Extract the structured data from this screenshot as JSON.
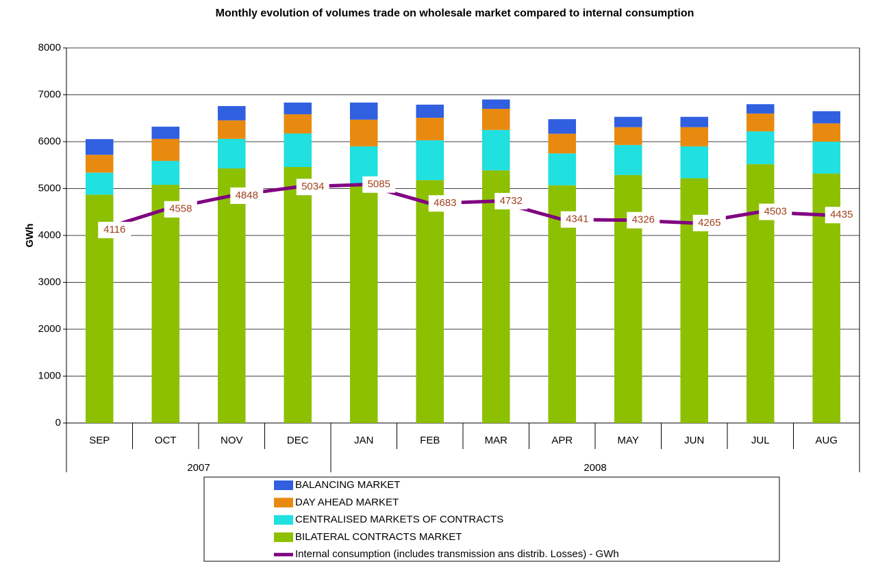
{
  "chart_data": {
    "type": "stacked_bar_line",
    "title": "Monthly evolution of volumes trade on wholesale market compared to internal consumption",
    "y_label": "GWh",
    "categories": [
      "SEP",
      "OCT",
      "NOV",
      "DEC",
      "JAN",
      "FEB",
      "MAR",
      "APR",
      "MAY",
      "JUN",
      "JUL",
      "AUG"
    ],
    "groups": [
      {
        "label": "2007",
        "count": 4
      },
      {
        "label": "2008",
        "count": 8
      }
    ],
    "ylim": [
      0,
      8000
    ],
    "yticks": [
      0,
      1000,
      2000,
      3000,
      4000,
      5000,
      6000,
      7000,
      8000
    ],
    "grid": true,
    "series": [
      {
        "name": "BILATERAL CONTRACTS MARKET",
        "color": "#8dc000",
        "values": [
          4870,
          5080,
          5430,
          5460,
          5060,
          5180,
          5390,
          5070,
          5290,
          5220,
          5520,
          5320
        ]
      },
      {
        "name": "CENTRALISED MARKETS OF CONTRACTS",
        "color": "#20e0e0",
        "values": [
          470,
          510,
          630,
          715,
          840,
          850,
          860,
          680,
          640,
          680,
          700,
          680
        ]
      },
      {
        "name": "DAY AHEAD MARKET",
        "color": "#e88a10",
        "values": [
          380,
          470,
          395,
          410,
          570,
          480,
          450,
          420,
          380,
          410,
          380,
          390
        ]
      },
      {
        "name": "BALANCING MARKET",
        "color": "#3060e0",
        "values": [
          335,
          260,
          305,
          250,
          365,
          280,
          200,
          310,
          220,
          220,
          200,
          260
        ]
      },
      {
        "name": "Internal consumption (includes transmission ans distrib. Losses) - GWh",
        "color": "#800080",
        "type": "line",
        "label_color": "#a0401a",
        "values": [
          4116,
          4558,
          4848,
          5034,
          5085,
          4683,
          4732,
          4341,
          4326,
          4265,
          4503,
          4435
        ]
      }
    ]
  }
}
